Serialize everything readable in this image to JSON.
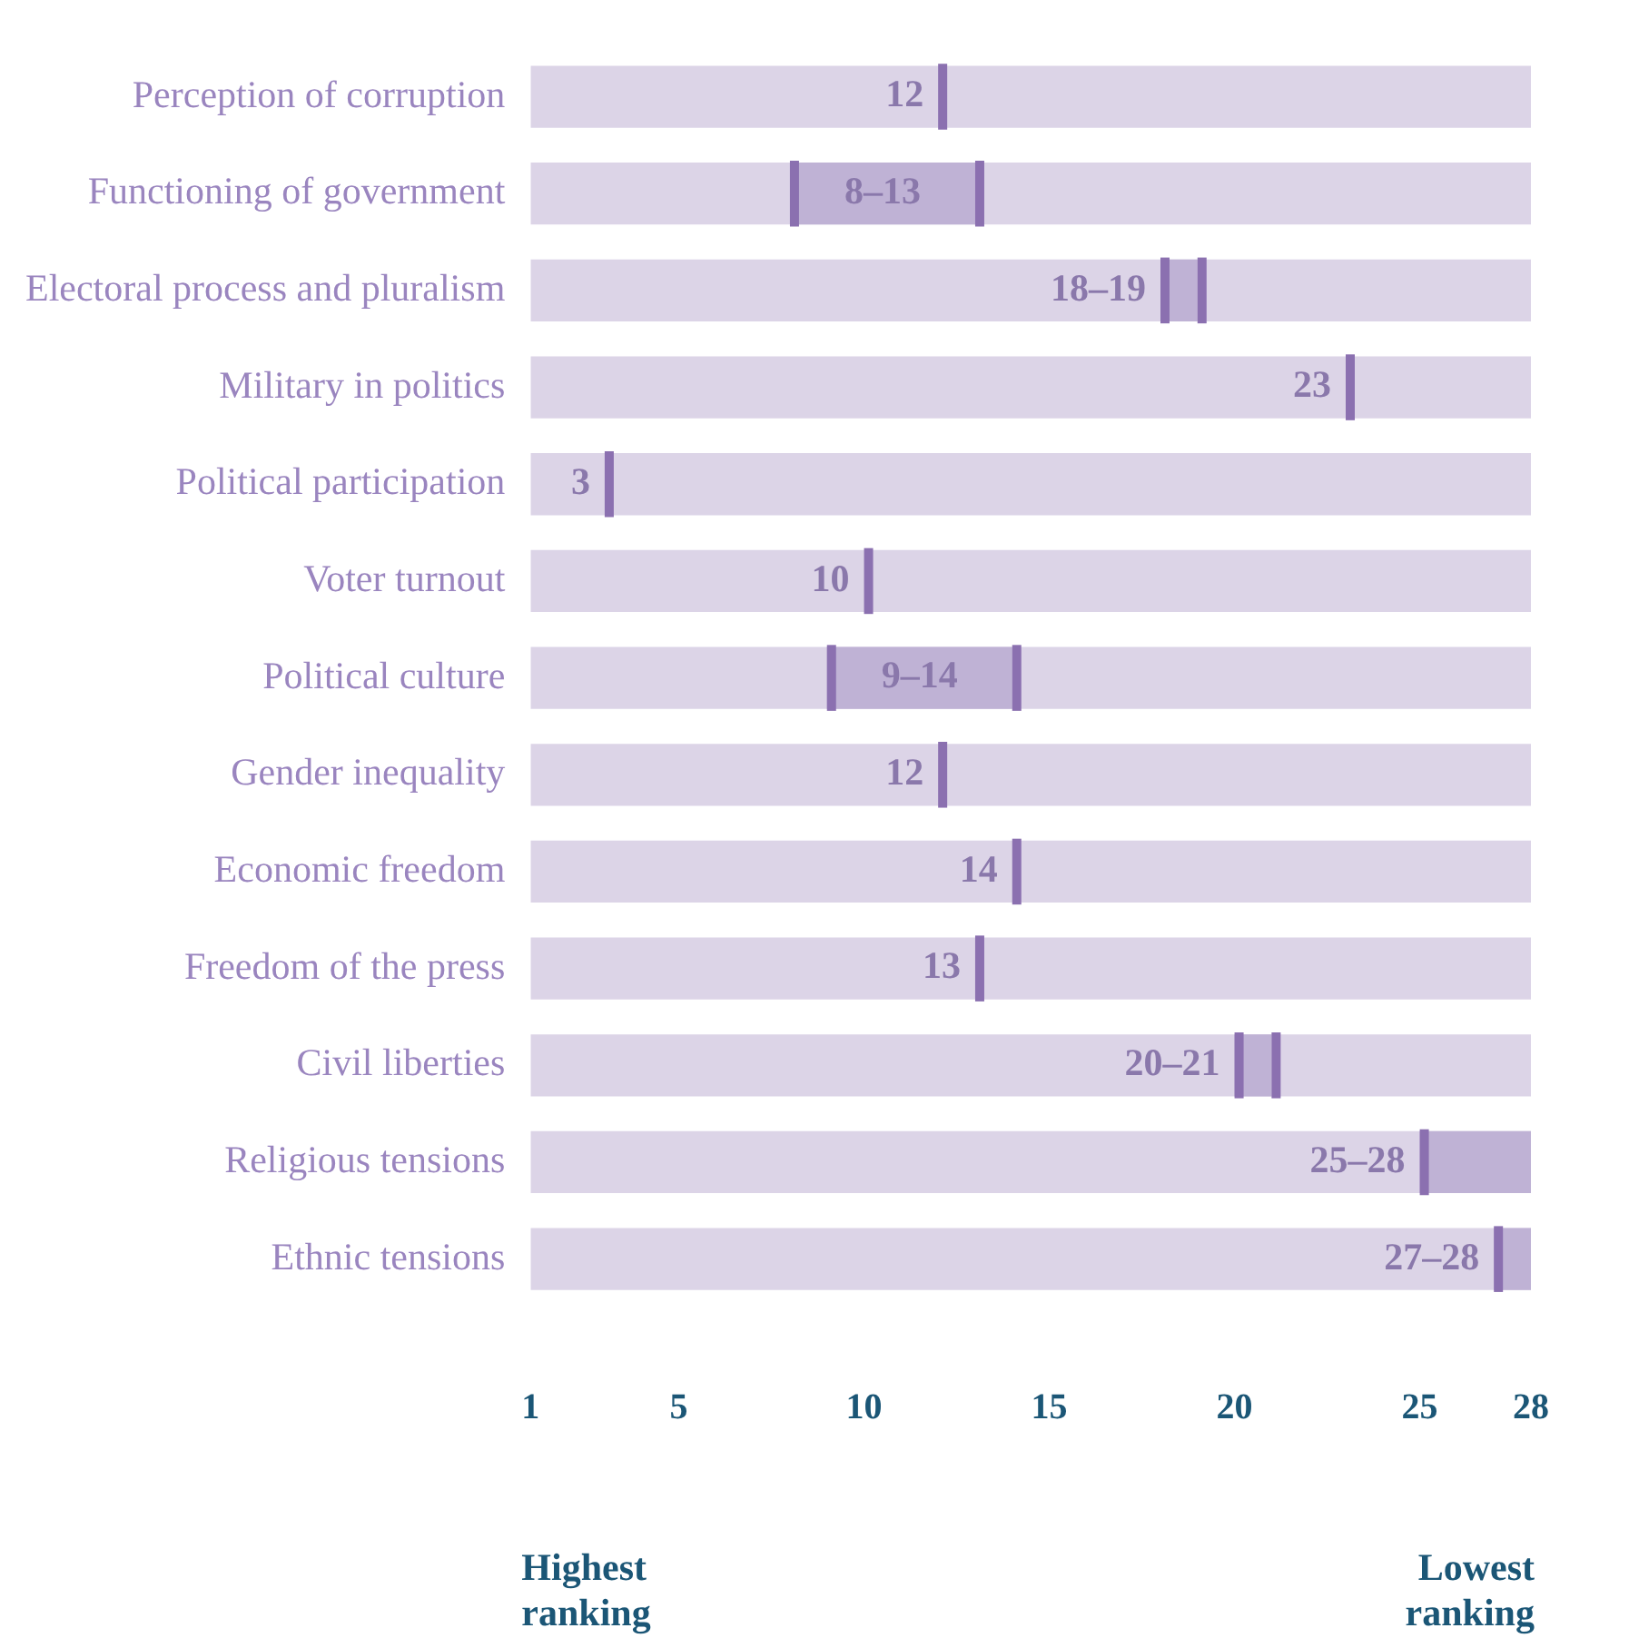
{
  "chart_data": {
    "type": "bar",
    "orientation": "horizontal",
    "categories": [
      "Perception of corruption",
      "Functioning of government",
      "Electoral process and pluralism",
      "Military in politics",
      "Political participation",
      "Voter turnout",
      "Political culture",
      "Gender inequality",
      "Economic freedom",
      "Freedom of the press",
      "Civil liberties",
      "Religious tensions",
      "Ethnic tensions"
    ],
    "series": [
      {
        "color": "#dcd4e7",
        "base": [
          1,
          1,
          1,
          1,
          1,
          1,
          1,
          1,
          1,
          1,
          1,
          1,
          1
        ],
        "values": [
          27,
          27,
          27,
          27,
          27,
          27,
          27,
          27,
          27,
          27,
          27,
          27,
          27
        ]
      },
      {
        "color": "#bfb2d5",
        "base": [
          null,
          8,
          18,
          null,
          null,
          null,
          9,
          null,
          null,
          null,
          20,
          25,
          27
        ],
        "values": [
          null,
          5,
          1,
          null,
          null,
          null,
          5,
          null,
          null,
          null,
          1,
          3,
          1
        ]
      },
      {
        "color": "#8b70b0",
        "base": [
          12,
          8,
          18,
          23,
          3,
          10,
          9,
          12,
          14,
          13,
          20,
          25,
          27
        ],
        "values": [
          0,
          0,
          0,
          0,
          0,
          0,
          0,
          0,
          0,
          0,
          0,
          0,
          0
        ],
        "value_labels": [
          "12",
          "8–13",
          "18–19",
          "23",
          "3",
          "10",
          "9–14",
          "12",
          "14",
          "13",
          "20–21",
          "25–28",
          "27–28"
        ]
      },
      {
        "color": "#8b70b0",
        "base": [
          null,
          13,
          19,
          null,
          null,
          null,
          14,
          null,
          null,
          null,
          21,
          28,
          28
        ],
        "values": [
          null,
          0,
          0,
          null,
          null,
          null,
          0,
          null,
          null,
          null,
          0,
          0,
          0
        ]
      }
    ],
    "xlim": [
      1,
      28
    ],
    "xticks": [
      1,
      5,
      10,
      15,
      20,
      25,
      28
    ],
    "grid": false,
    "legend": false,
    "annotations": [
      "Highest ranking",
      "Lowest ranking"
    ]
  }
}
